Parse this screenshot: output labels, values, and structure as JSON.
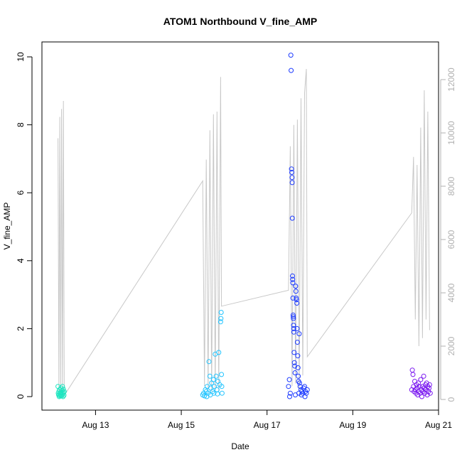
{
  "chart_data": {
    "type": "scatter",
    "title": "ATOM1 Northbound V_fine_AMP",
    "xlabel": "Date",
    "ylabel": "V_fine_AMP",
    "y2label": "",
    "xlim": [
      "2023-08-11T18:00",
      "2023-08-21T00:00"
    ],
    "x_ticks": [
      "Aug 13",
      "Aug 15",
      "Aug 17",
      "Aug 19",
      "Aug 21"
    ],
    "x_tick_dates": [
      "2023-08-13",
      "2023-08-15",
      "2023-08-17",
      "2023-08-19",
      "2023-08-21"
    ],
    "ylim": [
      0,
      10.2
    ],
    "y_ticks": [
      0,
      2,
      4,
      6,
      8,
      10
    ],
    "y2lim": [
      0,
      12500
    ],
    "y2_ticks": [
      0,
      2000,
      4000,
      6000,
      8000,
      10000,
      12000
    ],
    "grid": false,
    "colors": {
      "line_series": "#c8c8c8",
      "axis2_text": "#b0b0b0",
      "point_palette": [
        "#1fe5c0",
        "#22c4ff",
        "#1e3cff",
        "#7a18f0"
      ]
    },
    "line_series": {
      "axis": "right",
      "points": [
        [
          "2023-08-12T03:00",
          9800
        ],
        [
          "2023-08-12T03:30",
          200
        ],
        [
          "2023-08-12T04:00",
          10600
        ],
        [
          "2023-08-12T04:30",
          300
        ],
        [
          "2023-08-12T05:00",
          10900
        ],
        [
          "2023-08-12T05:30",
          200
        ],
        [
          "2023-08-12T06:00",
          11200
        ],
        [
          "2023-08-12T06:30",
          150
        ],
        [
          "2023-08-15T12:00",
          8200
        ],
        [
          "2023-08-15T13:00",
          500
        ],
        [
          "2023-08-15T14:00",
          9000
        ],
        [
          "2023-08-15T15:00",
          400
        ],
        [
          "2023-08-15T16:00",
          10100
        ],
        [
          "2023-08-15T17:00",
          300
        ],
        [
          "2023-08-15T18:00",
          10700
        ],
        [
          "2023-08-15T19:00",
          350
        ],
        [
          "2023-08-15T20:00",
          10800
        ],
        [
          "2023-08-15T21:00",
          300
        ],
        [
          "2023-08-15T22:00",
          12100
        ],
        [
          "2023-08-15T22:30",
          3500
        ],
        [
          "2023-08-17T12:00",
          4100
        ],
        [
          "2023-08-17T13:00",
          9500
        ],
        [
          "2023-08-17T14:00",
          500
        ],
        [
          "2023-08-17T15:00",
          10300
        ],
        [
          "2023-08-17T16:00",
          600
        ],
        [
          "2023-08-17T17:00",
          10500
        ],
        [
          "2023-08-17T18:00",
          400
        ],
        [
          "2023-08-17T19:00",
          11300
        ],
        [
          "2023-08-17T20:00",
          900
        ],
        [
          "2023-08-17T21:00",
          11500
        ],
        [
          "2023-08-17T22:00",
          12400
        ],
        [
          "2023-08-17T22:30",
          1600
        ],
        [
          "2023-08-20T09:00",
          7000
        ],
        [
          "2023-08-20T10:00",
          9100
        ],
        [
          "2023-08-20T11:00",
          3000
        ],
        [
          "2023-08-20T12:00",
          8800
        ],
        [
          "2023-08-20T13:00",
          2000
        ],
        [
          "2023-08-20T14:00",
          10200
        ],
        [
          "2023-08-20T15:00",
          2300
        ],
        [
          "2023-08-20T16:00",
          11600
        ],
        [
          "2023-08-20T17:00",
          3000
        ],
        [
          "2023-08-20T18:00",
          10800
        ],
        [
          "2023-08-20T19:00",
          2600
        ]
      ]
    },
    "groups": [
      {
        "color": "#1fe5c0",
        "points": [
          [
            "2023-08-12T03:00",
            0.3
          ],
          [
            "2023-08-12T03:10",
            0.1
          ],
          [
            "2023-08-12T03:20",
            0.05
          ],
          [
            "2023-08-12T03:30",
            0.15
          ],
          [
            "2023-08-12T03:40",
            0.0
          ],
          [
            "2023-08-12T03:50",
            0.2
          ],
          [
            "2023-08-12T04:00",
            0.08
          ],
          [
            "2023-08-12T04:10",
            0.02
          ],
          [
            "2023-08-12T04:20",
            0.12
          ],
          [
            "2023-08-12T04:30",
            0.05
          ],
          [
            "2023-08-12T04:40",
            0.25
          ],
          [
            "2023-08-12T04:50",
            0.1
          ],
          [
            "2023-08-12T05:00",
            0.02
          ],
          [
            "2023-08-12T05:10",
            0.18
          ],
          [
            "2023-08-12T05:20",
            0.06
          ],
          [
            "2023-08-12T05:30",
            0.3
          ],
          [
            "2023-08-12T05:40",
            0.1
          ],
          [
            "2023-08-12T05:50",
            0.0
          ],
          [
            "2023-08-12T06:00",
            0.22
          ],
          [
            "2023-08-12T06:10",
            0.12
          ],
          [
            "2023-08-12T06:20",
            0.04
          ],
          [
            "2023-08-12T06:30",
            0.15
          ]
        ]
      },
      {
        "color": "#22c4ff",
        "points": [
          [
            "2023-08-15T12:00",
            0.05
          ],
          [
            "2023-08-15T12:30",
            0.1
          ],
          [
            "2023-08-15T13:00",
            0.02
          ],
          [
            "2023-08-15T13:30",
            0.2
          ],
          [
            "2023-08-15T14:00",
            0.15
          ],
          [
            "2023-08-15T14:30",
            0.3
          ],
          [
            "2023-08-15T15:00",
            0.1
          ],
          [
            "2023-08-15T15:30",
            1.03
          ],
          [
            "2023-08-15T16:00",
            0.6
          ],
          [
            "2023-08-15T16:30",
            0.25
          ],
          [
            "2023-08-15T17:00",
            0.4
          ],
          [
            "2023-08-15T17:30",
            0.15
          ],
          [
            "2023-08-15T18:00",
            0.5
          ],
          [
            "2023-08-15T18:30",
            0.3
          ],
          [
            "2023-08-15T19:00",
            1.25
          ],
          [
            "2023-08-15T19:30",
            0.6
          ],
          [
            "2023-08-15T20:00",
            0.2
          ],
          [
            "2023-08-15T20:30",
            0.45
          ],
          [
            "2023-08-15T21:00",
            1.3
          ],
          [
            "2023-08-15T21:30",
            0.35
          ],
          [
            "2023-08-15T22:00",
            2.2
          ],
          [
            "2023-08-15T22:10",
            2.3
          ],
          [
            "2023-08-15T22:20",
            2.48
          ],
          [
            "2023-08-15T22:30",
            0.65
          ],
          [
            "2023-08-15T22:40",
            0.3
          ],
          [
            "2023-08-15T22:50",
            0.1
          ],
          [
            "2023-08-15T14:15",
            0.0
          ],
          [
            "2023-08-15T16:15",
            0.05
          ],
          [
            "2023-08-15T18:15",
            0.1
          ],
          [
            "2023-08-15T20:15",
            0.08
          ]
        ]
      },
      {
        "color": "#1e3cff",
        "points": [
          [
            "2023-08-17T12:00",
            0.3
          ],
          [
            "2023-08-17T12:30",
            0.5
          ],
          [
            "2023-08-17T13:00",
            0.1
          ],
          [
            "2023-08-17T13:20",
            10.05
          ],
          [
            "2023-08-17T13:30",
            9.6
          ],
          [
            "2023-08-17T13:40",
            6.7
          ],
          [
            "2023-08-17T13:50",
            6.6
          ],
          [
            "2023-08-17T14:00",
            6.45
          ],
          [
            "2023-08-17T14:05",
            6.3
          ],
          [
            "2023-08-17T14:10",
            5.25
          ],
          [
            "2023-08-17T14:15",
            3.55
          ],
          [
            "2023-08-17T14:20",
            3.45
          ],
          [
            "2023-08-17T14:25",
            3.35
          ],
          [
            "2023-08-17T14:30",
            2.9
          ],
          [
            "2023-08-17T14:35",
            2.4
          ],
          [
            "2023-08-17T14:40",
            2.35
          ],
          [
            "2023-08-17T14:45",
            2.3
          ],
          [
            "2023-08-17T14:50",
            2.1
          ],
          [
            "2023-08-17T14:55",
            2.0
          ],
          [
            "2023-08-17T15:00",
            1.9
          ],
          [
            "2023-08-17T15:10",
            1.3
          ],
          [
            "2023-08-17T15:20",
            1.0
          ],
          [
            "2023-08-17T15:30",
            0.9
          ],
          [
            "2023-08-17T15:40",
            0.7
          ],
          [
            "2023-08-17T16:00",
            3.25
          ],
          [
            "2023-08-17T16:10",
            3.1
          ],
          [
            "2023-08-17T16:20",
            2.9
          ],
          [
            "2023-08-17T16:30",
            2.85
          ],
          [
            "2023-08-17T16:40",
            2.75
          ],
          [
            "2023-08-17T16:50",
            2.0
          ],
          [
            "2023-08-17T17:00",
            1.6
          ],
          [
            "2023-08-17T17:10",
            1.2
          ],
          [
            "2023-08-17T17:20",
            0.85
          ],
          [
            "2023-08-17T17:30",
            0.6
          ],
          [
            "2023-08-17T17:40",
            0.45
          ],
          [
            "2023-08-17T18:00",
            1.85
          ],
          [
            "2023-08-17T18:10",
            0.4
          ],
          [
            "2023-08-17T18:30",
            0.3
          ],
          [
            "2023-08-17T19:00",
            0.2
          ],
          [
            "2023-08-17T19:30",
            0.15
          ],
          [
            "2023-08-17T20:00",
            0.1
          ],
          [
            "2023-08-17T20:30",
            0.25
          ],
          [
            "2023-08-17T21:00",
            0.3
          ],
          [
            "2023-08-17T21:30",
            0.15
          ],
          [
            "2023-08-17T22:00",
            0.1
          ],
          [
            "2023-08-17T22:30",
            0.2
          ],
          [
            "2023-08-17T12:40",
            0.0
          ],
          [
            "2023-08-17T15:50",
            0.05
          ],
          [
            "2023-08-17T17:50",
            0.1
          ],
          [
            "2023-08-17T19:15",
            0.05
          ],
          [
            "2023-08-17T21:15",
            0.0
          ]
        ]
      },
      {
        "color": "#7a18f0",
        "points": [
          [
            "2023-08-20T09:00",
            0.2
          ],
          [
            "2023-08-20T09:20",
            0.78
          ],
          [
            "2023-08-20T09:40",
            0.65
          ],
          [
            "2023-08-20T10:00",
            0.3
          ],
          [
            "2023-08-20T10:20",
            0.15
          ],
          [
            "2023-08-20T10:40",
            0.45
          ],
          [
            "2023-08-20T11:00",
            0.2
          ],
          [
            "2023-08-20T11:20",
            0.1
          ],
          [
            "2023-08-20T11:40",
            0.35
          ],
          [
            "2023-08-20T12:00",
            0.25
          ],
          [
            "2023-08-20T12:20",
            0.05
          ],
          [
            "2023-08-20T12:40",
            0.4
          ],
          [
            "2023-08-20T13:00",
            0.15
          ],
          [
            "2023-08-20T13:20",
            0.3
          ],
          [
            "2023-08-20T13:40",
            0.1
          ],
          [
            "2023-08-20T14:00",
            0.5
          ],
          [
            "2023-08-20T14:20",
            0.2
          ],
          [
            "2023-08-20T14:40",
            0.0
          ],
          [
            "2023-08-20T15:00",
            0.3
          ],
          [
            "2023-08-20T15:20",
            0.15
          ],
          [
            "2023-08-20T15:40",
            0.6
          ],
          [
            "2023-08-20T16:00",
            0.25
          ],
          [
            "2023-08-20T16:20",
            0.1
          ],
          [
            "2023-08-20T16:40",
            0.35
          ],
          [
            "2023-08-20T17:00",
            0.2
          ],
          [
            "2023-08-20T17:20",
            0.4
          ],
          [
            "2023-08-20T17:40",
            0.05
          ],
          [
            "2023-08-20T18:00",
            0.3
          ],
          [
            "2023-08-20T18:20",
            0.15
          ],
          [
            "2023-08-20T18:40",
            0.25
          ],
          [
            "2023-08-20T19:00",
            0.35
          ],
          [
            "2023-08-20T19:20",
            0.1
          ]
        ]
      }
    ]
  }
}
